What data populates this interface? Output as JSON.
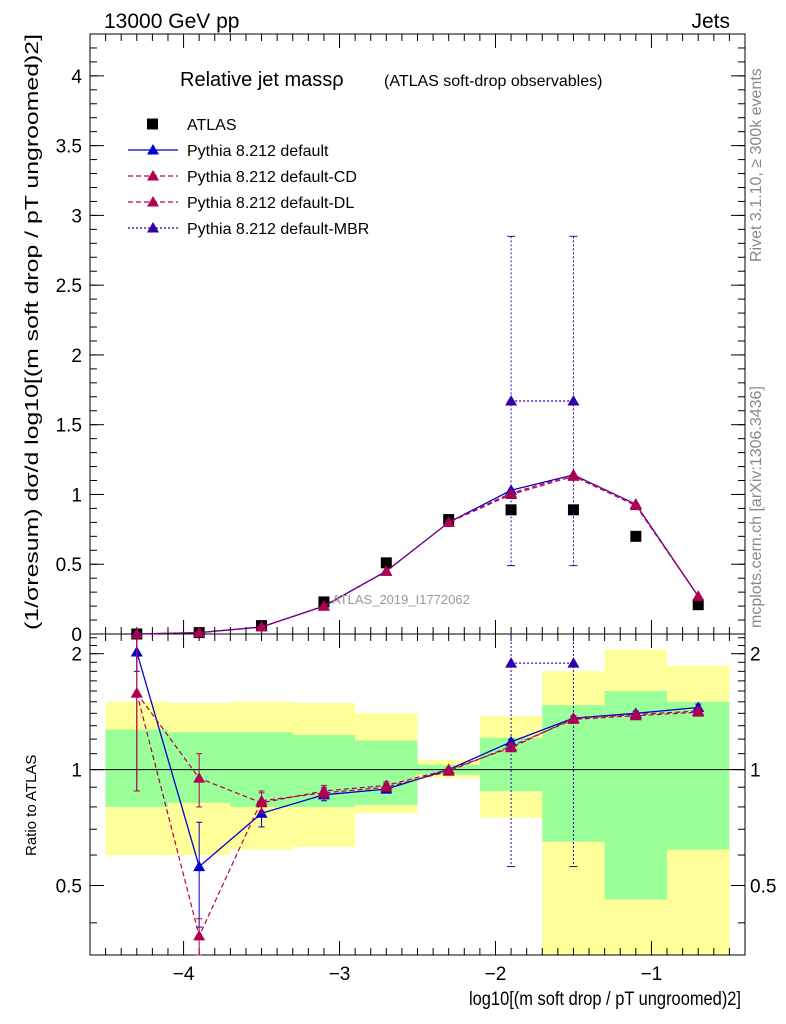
{
  "header": {
    "left": "13000 GeV pp",
    "right": "Jets"
  },
  "side": {
    "rivet": "Rivet 3.1.10, ≥ 300k events",
    "mcplots": "mcplots.cern.ch [arXiv:1306.3436]"
  },
  "colors": {
    "yellow": "#ffff99",
    "green": "#99ff99",
    "blue": "#0000cc",
    "crimson": "#b00050",
    "indigo": "#3300aa",
    "black": "#000000"
  },
  "chart_data": [
    {
      "type": "scatter",
      "title": "Relative jet massρ",
      "subtitle": "(ATLAS soft-drop observables)",
      "watermark": "ATLAS_2019_I1772062",
      "ylabel": "(1/σresum) dσ/d log10[(m soft drop / pT ungroomed)2]",
      "xlim": [
        -4.6,
        -0.4
      ],
      "ylim": [
        0,
        4.3
      ],
      "yticks": [
        0,
        0.5,
        1,
        1.5,
        2,
        2.5,
        3,
        3.5,
        4
      ],
      "ytick_labels": [
        "0",
        "0.5",
        "1",
        "1.5",
        "2",
        "2.5",
        "3",
        "3.5",
        "4"
      ],
      "x": [
        -4.3,
        -3.9,
        -3.5,
        -3.1,
        -2.7,
        -2.3,
        -1.9,
        -1.5,
        -1.1,
        -0.7
      ],
      "series": [
        {
          "name": "ATLAS",
          "style": "data",
          "values": [
            0.0,
            0.01,
            0.06,
            0.23,
            0.51,
            0.82,
            0.89,
            0.89,
            0.7,
            0.21
          ]
        },
        {
          "name": "Pythia 8.212 default",
          "style": "solid",
          "values": [
            0.0,
            0.01,
            0.05,
            0.2,
            0.45,
            0.8,
            1.03,
            1.14,
            0.93,
            0.27
          ]
        },
        {
          "name": "Pythia 8.212 default-CD",
          "style": "dashed",
          "values": [
            0.0,
            0.01,
            0.05,
            0.2,
            0.45,
            0.8,
            1.0,
            1.13,
            0.92,
            0.27
          ]
        },
        {
          "name": "Pythia 8.212 default-DL",
          "style": "dashed",
          "values": [
            0.0,
            0.01,
            0.05,
            0.2,
            0.45,
            0.8,
            1.01,
            1.14,
            0.93,
            0.27
          ]
        },
        {
          "name": "Pythia 8.212 default-MBR",
          "style": "dotted",
          "values": [
            null,
            null,
            null,
            null,
            null,
            null,
            1.67,
            1.67,
            null,
            null
          ],
          "yerr": [
            2.85,
            0.49
          ]
        }
      ]
    },
    {
      "type": "scatter",
      "ylabel": "Ratio to ATLAS",
      "xlabel": "log10[(m soft drop / pT ungroomed)2]",
      "xlim": [
        -4.6,
        -0.4
      ],
      "ylim": [
        0.33,
        2.25
      ],
      "yticks": [
        0.5,
        1,
        2
      ],
      "ytick_labels": [
        "0.5",
        "1",
        "2"
      ],
      "xticks": [
        -4,
        -3,
        -2,
        -1
      ],
      "xtick_labels": [
        "−4",
        "−3",
        "−2",
        "−1"
      ],
      "x": [
        -4.3,
        -3.9,
        -3.5,
        -3.1,
        -2.7,
        -2.3,
        -1.9,
        -1.5,
        -1.1,
        -0.7
      ],
      "bin_edges": [
        -4.5,
        -4.1,
        -3.7,
        -3.3,
        -2.9,
        -2.5,
        -2.1,
        -1.7,
        -1.3,
        -0.9,
        -0.5
      ],
      "band_yellow": [
        [
          0.6,
          1.5
        ],
        [
          0.6,
          1.49
        ],
        [
          0.62,
          1.5
        ],
        [
          0.63,
          1.49
        ],
        [
          0.77,
          1.4
        ],
        [
          0.95,
          1.06
        ],
        [
          0.75,
          1.38
        ],
        [
          0.33,
          1.8
        ],
        [
          0.33,
          2.05
        ],
        [
          0.33,
          1.86
        ]
      ],
      "band_green": [
        [
          0.8,
          1.27
        ],
        [
          0.82,
          1.25
        ],
        [
          0.8,
          1.25
        ],
        [
          0.8,
          1.23
        ],
        [
          0.81,
          1.19
        ],
        [
          0.97,
          1.03
        ],
        [
          0.88,
          1.21
        ],
        [
          0.65,
          1.47
        ],
        [
          0.46,
          1.6
        ],
        [
          0.62,
          1.5
        ]
      ],
      "series": [
        {
          "name": "Pythia 8.212 default",
          "style": "solid",
          "values": [
            2.02,
            0.56,
            0.77,
            0.86,
            0.89,
            1.0,
            1.18,
            1.36,
            1.4,
            1.45
          ],
          "yerr": [
            0.22,
            0.17,
            0.06,
            0.03,
            0.02,
            0.01,
            0.02,
            0.02,
            0.02,
            0.03
          ]
        },
        {
          "name": "Pythia 8.212 default-CD",
          "style": "dashed",
          "values": [
            1.58,
            0.37,
            0.83,
            0.87,
            0.9,
            0.99,
            1.15,
            1.35,
            1.38,
            1.41
          ],
          "yerr": [
            0.7,
            0.04,
            0.05,
            0.03,
            0.02,
            0.01,
            0.02,
            0.02,
            0.02,
            0.03
          ]
        },
        {
          "name": "Pythia 8.212 default-DL",
          "style": "dashed",
          "values": [
            1.58,
            0.95,
            0.82,
            0.88,
            0.91,
            1.0,
            1.14,
            1.36,
            1.39,
            1.42
          ],
          "yerr": [
            0.7,
            0.15,
            0.05,
            0.03,
            0.02,
            0.01,
            0.02,
            0.02,
            0.02,
            0.03
          ]
        },
        {
          "name": "Pythia 8.212 default-MBR",
          "style": "dotted",
          "values": [
            null,
            null,
            null,
            null,
            null,
            null,
            1.89,
            1.89,
            null,
            null
          ]
        }
      ]
    }
  ]
}
